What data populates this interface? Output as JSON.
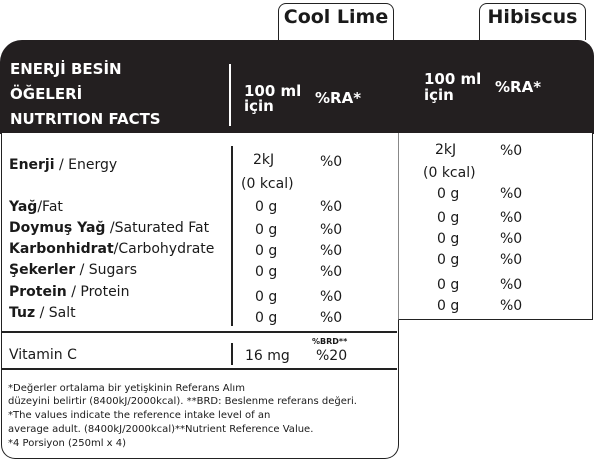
{
  "tabs": [
    "Cool Lime",
    "Hibiscus"
  ],
  "header": {
    "title_lines": [
      "ENERJİ BESİN",
      "ÖĞELERİ",
      "NUTRITION FACTS"
    ],
    "col_per100": [
      "100 ml",
      "için"
    ],
    "col_ra": "%RA*",
    "col_per100_b": [
      "100 ml",
      "için"
    ],
    "col_ra_b": "%RA*"
  },
  "rows": [
    {
      "tr": "Enerji",
      "en": " / Energy",
      "v1": "2kJ",
      "v1b": "(0 kcal)",
      "ra1": "%0",
      "v2": "2kJ",
      "v2b": "(0 kcal)",
      "ra2": "%0"
    },
    {
      "tr": "Yağ",
      "en": "/Fat",
      "v1": "0 g",
      "ra1": "%0",
      "v2": "0 g",
      "ra2": "%0"
    },
    {
      "tr": "Doymuş Yağ",
      "en": " /Saturated Fat",
      "v1": "0 g",
      "ra1": "%0",
      "v2": "0 g",
      "ra2": "%0"
    },
    {
      "tr": "Karbonhidrat",
      "en": "/Carbohydrate",
      "v1": "0 g",
      "ra1": "%0",
      "v2": "0 g",
      "ra2": "%0"
    },
    {
      "tr": "Şekerler",
      "en": " / Sugars",
      "v1": "0 g",
      "ra1": "%0",
      "v2": "0 g",
      "ra2": "%0"
    },
    {
      "tr": "Protein",
      "en": " / Protein",
      "v1": "0 g",
      "ra1": "%0",
      "v2": "0 g",
      "ra2": "%0"
    },
    {
      "tr": "Tuz",
      "en": " / Salt",
      "v1": "0 g",
      "ra1": "%0",
      "v2": "0 g",
      "ra2": "%0"
    }
  ],
  "vitamin": {
    "label": "Vitamin C",
    "value": "16 mg",
    "brd_label": "%BRD**",
    "brd": "%20"
  },
  "footnotes": [
    "*Değerler ortalama bir yetişkinin Referans Alım",
    " düzeyini belirtir (8400kJ/2000kcal). **BRD: Beslenme referans değeri.",
    "*The values indicate the reference intake level of an",
    "average adult. (8400kJ/2000kcal)**Nutrient Reference Value.",
    "*4 Porsiyon (250ml x 4)"
  ]
}
